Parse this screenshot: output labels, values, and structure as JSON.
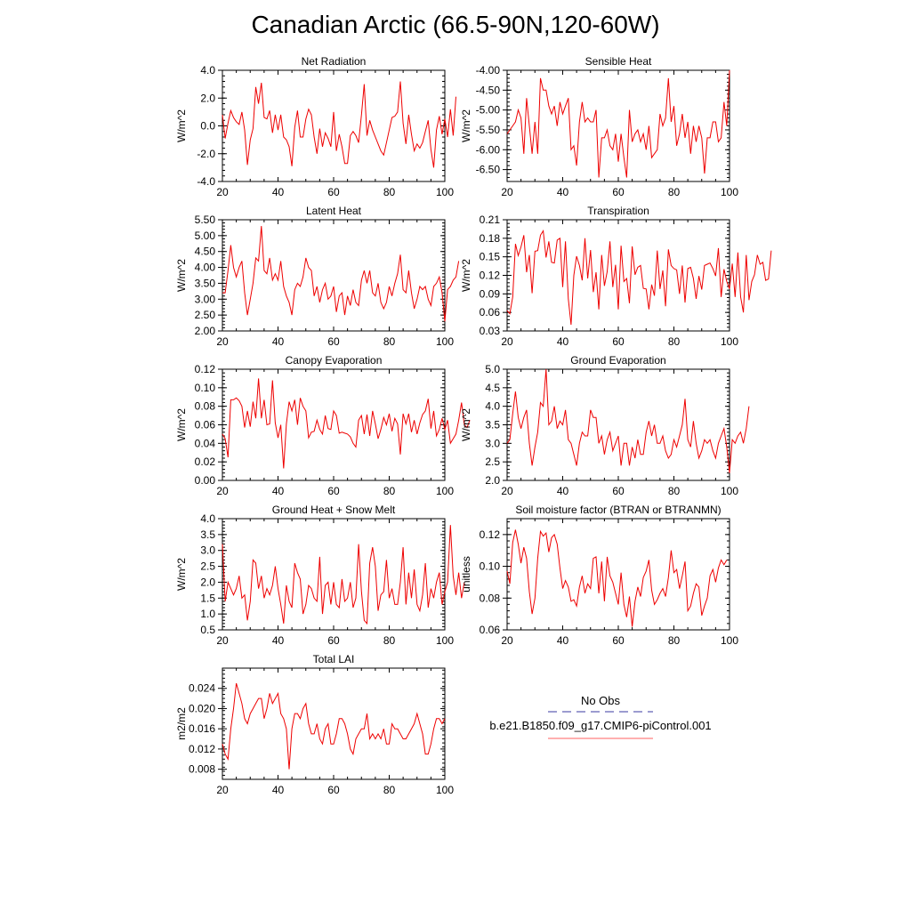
{
  "title": "Canadian Arctic (66.5-90N,120-60W)",
  "legend": {
    "obs_label": "No Obs",
    "obs_color": "#3a3aa0",
    "model_label": "b.e21.B1850.f09_g17.CMIP6-piControl.001",
    "model_color": "#ff6060"
  },
  "line_color": "#ee0000",
  "chart_data": [
    {
      "type": "line",
      "title": "Net Radiation",
      "ylabel": "W/m^2",
      "xlim": [
        20,
        100
      ],
      "xticks": [
        20,
        40,
        60,
        80,
        100
      ],
      "ylim": [
        -4.0,
        4.0
      ],
      "yticks": [
        "-4.0",
        "-2.0",
        "0.0",
        "2.0",
        "4.0"
      ],
      "x_start": 20,
      "values": [
        0.8,
        -0.9,
        0.2,
        1.1,
        0.6,
        0.3,
        0.1,
        1.0,
        -0.3,
        -2.8,
        -1.0,
        -0.2,
        2.8,
        1.6,
        3.1,
        0.6,
        0.5,
        1.1,
        -0.5,
        0.8,
        -0.3,
        0.8,
        -0.8,
        -1.0,
        -1.5,
        -2.9,
        -0.1,
        1.1,
        -0.8,
        -0.8,
        0.5,
        1.2,
        0.8,
        -0.8,
        -2.0,
        -0.2,
        -1.5,
        -0.5,
        -0.9,
        -1.5,
        1.0,
        -1.8,
        -0.6,
        -1.5,
        -2.7,
        -2.7,
        -0.7,
        -0.4,
        -0.7,
        -1.2,
        0.8,
        3.0,
        -0.7,
        0.4,
        -0.3,
        -0.8,
        -1.3,
        -1.8,
        -2.1,
        -1.2,
        -0.3,
        0.6,
        0.7,
        1.0,
        3.2,
        0.2,
        -1.3,
        0.8,
        -0.6,
        -1.8,
        -1.3,
        -1.6,
        -1.2,
        -0.4,
        0.4,
        -1.7,
        -3.0,
        -0.3,
        0.7,
        -0.6,
        0.5,
        -0.8,
        1.2,
        -0.7,
        2.1
      ]
    },
    {
      "type": "line",
      "title": "Sensible Heat",
      "ylabel": "W/m^2",
      "xlim": [
        20,
        100
      ],
      "xticks": [
        20,
        40,
        60,
        80,
        100
      ],
      "ylim": [
        -6.8,
        -4.0
      ],
      "yticks": [
        "-6.50",
        "-6.00",
        "-5.50",
        "-5.00",
        "-4.50",
        "-4.00"
      ],
      "x_start": 20,
      "values": [
        -5.6,
        -5.5,
        -5.4,
        -5.3,
        -5.0,
        -5.2,
        -6.1,
        -4.7,
        -5.4,
        -6.1,
        -5.3,
        -6.1,
        -4.2,
        -4.5,
        -4.5,
        -4.9,
        -5.1,
        -4.9,
        -5.4,
        -4.8,
        -5.1,
        -4.9,
        -4.7,
        -6.0,
        -5.9,
        -6.4,
        -5.3,
        -4.8,
        -5.3,
        -5.2,
        -5.3,
        -5.3,
        -5.0,
        -6.7,
        -5.7,
        -5.7,
        -5.5,
        -5.9,
        -6.0,
        -5.6,
        -6.3,
        -5.6,
        -6.2,
        -6.7,
        -5.0,
        -5.8,
        -5.6,
        -5.5,
        -5.8,
        -5.6,
        -6.0,
        -5.4,
        -6.2,
        -6.1,
        -6.0,
        -5.1,
        -5.4,
        -5.2,
        -4.2,
        -5.3,
        -4.9,
        -5.9,
        -5.6,
        -5.1,
        -5.7,
        -5.3,
        -6.1,
        -5.4,
        -5.8,
        -5.4,
        -5.7,
        -6.6,
        -5.7,
        -5.7,
        -5.3,
        -5.3,
        -5.8,
        -5.7,
        -4.8,
        -5.4,
        -4.0
      ]
    },
    {
      "type": "line",
      "title": "Latent Heat",
      "ylabel": "W/m^2",
      "xlim": [
        20,
        100
      ],
      "xticks": [
        20,
        40,
        60,
        80,
        100
      ],
      "ylim": [
        2.0,
        5.5
      ],
      "yticks": [
        "2.00",
        "2.50",
        "3.00",
        "3.50",
        "4.00",
        "4.50",
        "5.00",
        "5.50"
      ],
      "x_start": 20,
      "values": [
        3.2,
        3.2,
        3.9,
        4.7,
        4.0,
        3.7,
        4.0,
        4.2,
        3.2,
        2.5,
        3.0,
        3.5,
        4.3,
        4.2,
        5.3,
        3.9,
        3.8,
        4.3,
        3.6,
        3.8,
        3.6,
        4.2,
        3.4,
        3.1,
        2.9,
        2.5,
        3.3,
        3.5,
        3.4,
        3.7,
        4.3,
        4.0,
        3.9,
        3.1,
        3.4,
        2.9,
        3.3,
        3.5,
        3.0,
        3.1,
        3.4,
        2.6,
        3.1,
        3.2,
        2.5,
        3.1,
        2.8,
        3.3,
        2.9,
        2.8,
        3.6,
        3.9,
        3.5,
        3.9,
        3.2,
        3.1,
        3.5,
        2.9,
        2.7,
        2.9,
        3.4,
        3.1,
        3.5,
        3.8,
        4.4,
        3.3,
        3.2,
        3.9,
        3.2,
        2.7,
        3.0,
        3.4,
        3.3,
        3.4,
        3.0,
        2.8,
        3.4,
        3.5,
        3.7,
        3.2,
        2.3,
        3.3,
        3.4,
        3.6,
        3.7,
        4.2
      ]
    },
    {
      "type": "line",
      "title": "Transpiration",
      "ylabel": "W/m^2",
      "xlim": [
        20,
        100
      ],
      "xticks": [
        20,
        40,
        60,
        80,
        100
      ],
      "ylim": [
        0.03,
        0.21
      ],
      "yticks": [
        "0.03",
        "0.06",
        "0.09",
        "0.12",
        "0.15",
        "0.18",
        "0.21"
      ],
      "x_start": 20,
      "values": [
        0.063,
        0.058,
        0.085,
        0.171,
        0.152,
        0.166,
        0.185,
        0.125,
        0.153,
        0.091,
        0.159,
        0.16,
        0.185,
        0.192,
        0.149,
        0.175,
        0.141,
        0.14,
        0.177,
        0.18,
        0.101,
        0.175,
        0.082,
        0.04,
        0.12,
        0.151,
        0.136,
        0.112,
        0.18,
        0.115,
        0.161,
        0.093,
        0.125,
        0.065,
        0.153,
        0.103,
        0.126,
        0.175,
        0.101,
        0.137,
        0.065,
        0.168,
        0.11,
        0.115,
        0.075,
        0.167,
        0.121,
        0.133,
        0.136,
        0.099,
        0.098,
        0.065,
        0.105,
        0.087,
        0.16,
        0.098,
        0.128,
        0.07,
        0.162,
        0.136,
        0.131,
        0.129,
        0.09,
        0.136,
        0.076,
        0.131,
        0.133,
        0.115,
        0.082,
        0.119,
        0.097,
        0.136,
        0.138,
        0.14,
        0.131,
        0.119,
        0.164,
        0.085,
        0.13,
        0.11,
        0.098,
        0.139,
        0.085,
        0.157,
        0.085,
        0.06,
        0.153,
        0.08,
        0.11,
        0.121,
        0.153,
        0.138,
        0.141,
        0.112,
        0.114,
        0.16
      ]
    },
    {
      "type": "line",
      "title": "Canopy Evaporation",
      "ylabel": "W/m^2",
      "xlim": [
        20,
        100
      ],
      "xticks": [
        20,
        40,
        60,
        80,
        100
      ],
      "ylim": [
        0.0,
        0.12
      ],
      "yticks": [
        "0.00",
        "0.02",
        "0.04",
        "0.06",
        "0.08",
        "0.10",
        "0.12"
      ],
      "x_start": 20,
      "values": [
        0.05,
        0.045,
        0.025,
        0.087,
        0.087,
        0.089,
        0.086,
        0.08,
        0.057,
        0.075,
        0.058,
        0.085,
        0.067,
        0.11,
        0.067,
        0.087,
        0.06,
        0.061,
        0.108,
        0.062,
        0.046,
        0.06,
        0.013,
        0.061,
        0.085,
        0.075,
        0.087,
        0.06,
        0.089,
        0.08,
        0.075,
        0.046,
        0.052,
        0.053,
        0.065,
        0.055,
        0.05,
        0.07,
        0.056,
        0.055,
        0.075,
        0.07,
        0.051,
        0.052,
        0.051,
        0.05,
        0.047,
        0.04,
        0.036,
        0.065,
        0.07,
        0.05,
        0.071,
        0.048,
        0.075,
        0.061,
        0.045,
        0.055,
        0.068,
        0.06,
        0.072,
        0.053,
        0.067,
        0.061,
        0.028,
        0.072,
        0.061,
        0.072,
        0.052,
        0.065,
        0.05,
        0.062,
        0.071,
        0.075,
        0.088,
        0.056,
        0.075,
        0.048,
        0.055,
        0.067,
        0.055,
        0.065,
        0.04,
        0.045,
        0.05,
        0.065,
        0.084,
        0.06,
        0.057,
        0.065
      ]
    },
    {
      "type": "line",
      "title": "Ground Evaporation",
      "ylabel": "W/m^2",
      "xlim": [
        20,
        100
      ],
      "xticks": [
        20,
        40,
        60,
        80,
        100
      ],
      "ylim": [
        2.0,
        5.0
      ],
      "yticks": [
        "2.0",
        "2.5",
        "3.0",
        "3.5",
        "4.0",
        "4.5",
        "5.0"
      ],
      "x_start": 20,
      "values": [
        3.0,
        3.1,
        3.8,
        4.4,
        3.7,
        3.4,
        3.7,
        3.9,
        3.0,
        2.4,
        2.9,
        3.3,
        4.1,
        4.0,
        5.0,
        3.5,
        3.6,
        4.0,
        3.4,
        3.6,
        3.5,
        3.9,
        3.1,
        3.0,
        2.7,
        2.4,
        3.0,
        3.3,
        3.2,
        3.2,
        3.9,
        3.7,
        3.7,
        3.0,
        3.2,
        2.7,
        3.1,
        3.3,
        2.8,
        3.0,
        3.2,
        2.4,
        3.0,
        3.0,
        2.4,
        2.9,
        2.6,
        3.1,
        2.7,
        2.7,
        3.3,
        3.6,
        3.2,
        3.5,
        3.0,
        3.0,
        3.2,
        2.8,
        2.6,
        2.7,
        3.1,
        2.9,
        3.2,
        3.5,
        4.2,
        3.1,
        2.9,
        3.6,
        3.0,
        2.6,
        2.8,
        3.1,
        3.0,
        3.1,
        2.8,
        2.6,
        3.0,
        3.2,
        3.4,
        2.9,
        2.2,
        3.1,
        3.0,
        3.2,
        3.3,
        3.0,
        3.4,
        4.0
      ]
    },
    {
      "type": "line",
      "title": "Ground Heat + Snow Melt",
      "ylabel": "W/m^2",
      "xlim": [
        20,
        100
      ],
      "xticks": [
        20,
        40,
        60,
        80,
        100
      ],
      "ylim": [
        0.5,
        4.0
      ],
      "yticks": [
        "0.5",
        "1.0",
        "1.5",
        "2.0",
        "2.5",
        "3.0",
        "3.5",
        "4.0"
      ],
      "x_start": 20,
      "values": [
        3.2,
        1.4,
        2.0,
        1.8,
        1.6,
        1.8,
        2.2,
        1.5,
        1.6,
        0.8,
        1.4,
        2.7,
        2.6,
        1.8,
        2.2,
        1.5,
        1.8,
        1.6,
        1.9,
        2.5,
        1.8,
        1.3,
        0.7,
        1.9,
        1.4,
        1.2,
        2.6,
        2.3,
        2.1,
        1.0,
        1.3,
        1.9,
        1.8,
        1.5,
        1.4,
        2.8,
        1.0,
        1.9,
        2.0,
        1.3,
        2.0,
        1.3,
        1.2,
        2.1,
        1.4,
        1.5,
        2.0,
        1.2,
        1.5,
        3.2,
        1.7,
        0.8,
        0.7,
        2.6,
        3.1,
        2.5,
        1.1,
        1.6,
        1.7,
        2.7,
        1.5,
        1.8,
        1.3,
        1.3,
        2.0,
        3.1,
        1.3,
        2.3,
        1.5,
        2.4,
        1.3,
        1.1,
        1.6,
        2.6,
        1.2,
        1.8,
        1.5,
        2.0,
        2.3,
        1.3,
        1.7,
        2.0,
        3.8,
        2.2,
        1.6,
        2.3,
        1.5,
        2.0
      ]
    },
    {
      "type": "line",
      "title": "Soil moisture factor (BTRAN or BTRANMN)",
      "ylabel": "unitless",
      "xlim": [
        20,
        100
      ],
      "xticks": [
        20,
        40,
        60,
        80,
        100
      ],
      "ylim": [
        0.06,
        0.13
      ],
      "yticks": [
        "0.06",
        "0.08",
        "0.10",
        "0.12"
      ],
      "x_start": 20,
      "values": [
        0.097,
        0.089,
        0.115,
        0.123,
        0.114,
        0.102,
        0.112,
        0.105,
        0.084,
        0.07,
        0.08,
        0.105,
        0.122,
        0.119,
        0.121,
        0.109,
        0.118,
        0.12,
        0.114,
        0.099,
        0.086,
        0.091,
        0.087,
        0.078,
        0.079,
        0.075,
        0.087,
        0.094,
        0.083,
        0.089,
        0.086,
        0.105,
        0.106,
        0.083,
        0.103,
        0.078,
        0.106,
        0.094,
        0.09,
        0.083,
        0.076,
        0.096,
        0.076,
        0.068,
        0.081,
        0.062,
        0.078,
        0.087,
        0.081,
        0.093,
        0.097,
        0.104,
        0.085,
        0.076,
        0.079,
        0.083,
        0.086,
        0.081,
        0.093,
        0.11,
        0.096,
        0.098,
        0.086,
        0.094,
        0.103,
        0.072,
        0.075,
        0.083,
        0.089,
        0.087,
        0.069,
        0.075,
        0.08,
        0.094,
        0.098,
        0.09,
        0.099,
        0.104,
        0.101,
        0.104
      ]
    },
    {
      "type": "line",
      "title": "Total LAI",
      "ylabel": "m2/m2",
      "xlim": [
        20,
        100
      ],
      "xticks": [
        20,
        40,
        60,
        80,
        100
      ],
      "ylim": [
        0.006,
        0.028
      ],
      "yticks": [
        "0.008",
        "0.012",
        "0.016",
        "0.020",
        "0.024"
      ],
      "x_start": 20,
      "values": [
        0.013,
        0.011,
        0.01,
        0.016,
        0.02,
        0.025,
        0.023,
        0.021,
        0.018,
        0.017,
        0.019,
        0.02,
        0.021,
        0.022,
        0.022,
        0.018,
        0.02,
        0.023,
        0.021,
        0.022,
        0.023,
        0.019,
        0.018,
        0.016,
        0.008,
        0.016,
        0.019,
        0.019,
        0.018,
        0.02,
        0.021,
        0.017,
        0.015,
        0.015,
        0.017,
        0.014,
        0.013,
        0.016,
        0.017,
        0.013,
        0.013,
        0.015,
        0.018,
        0.018,
        0.017,
        0.015,
        0.012,
        0.011,
        0.014,
        0.015,
        0.016,
        0.016,
        0.019,
        0.014,
        0.015,
        0.014,
        0.015,
        0.014,
        0.016,
        0.013,
        0.013,
        0.017,
        0.016,
        0.016,
        0.015,
        0.014,
        0.014,
        0.015,
        0.016,
        0.017,
        0.019,
        0.017,
        0.015,
        0.011,
        0.011,
        0.013,
        0.016,
        0.018,
        0.018,
        0.017,
        0.018
      ]
    }
  ]
}
